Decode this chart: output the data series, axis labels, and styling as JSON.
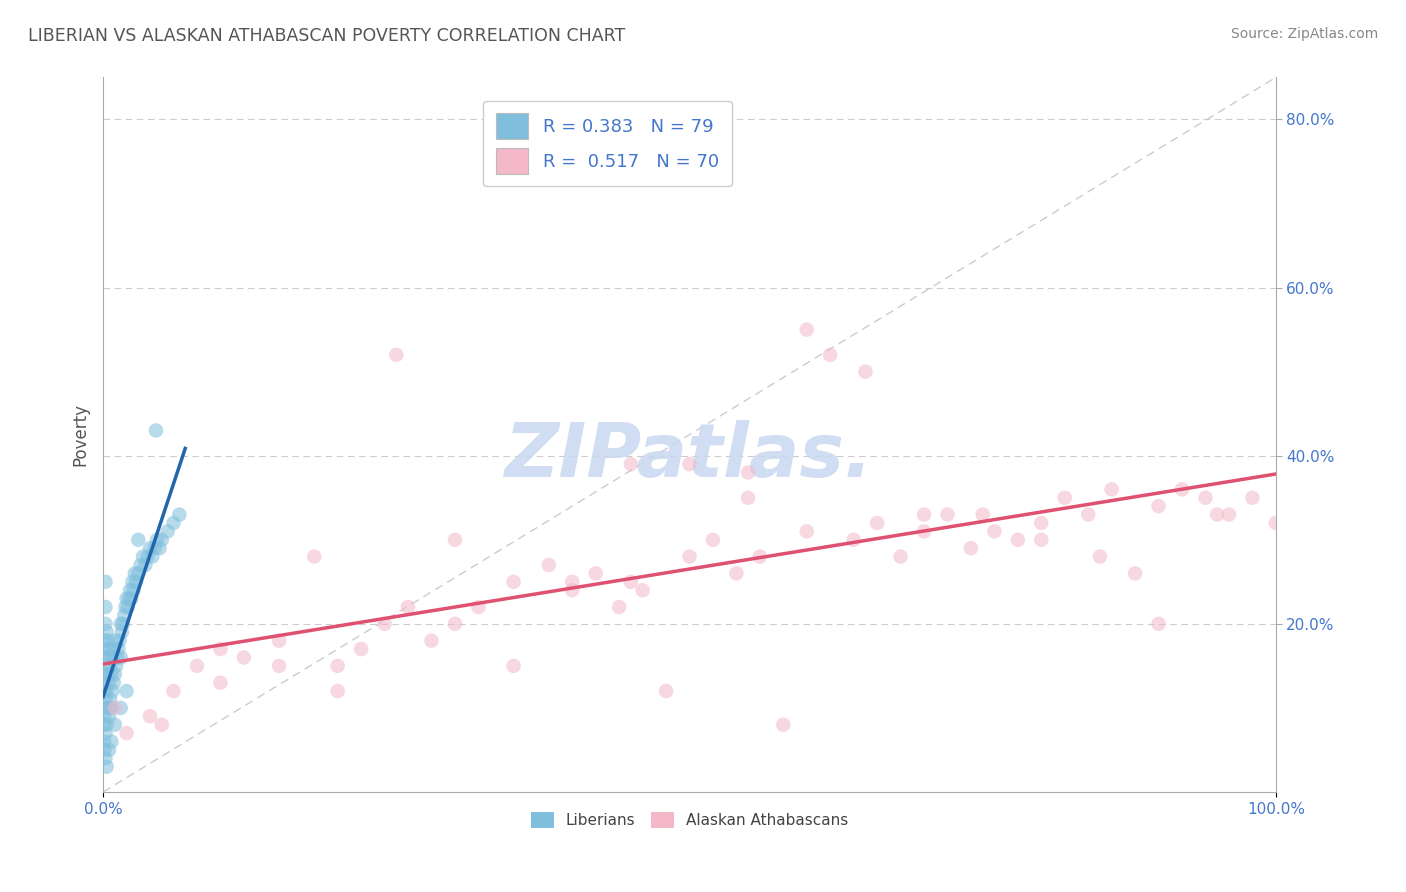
{
  "title": "LIBERIAN VS ALASKAN ATHABASCAN POVERTY CORRELATION CHART",
  "source": "Source: ZipAtlas.com",
  "ylabel": "Poverty",
  "xlim": [
    0.0,
    1.0
  ],
  "ylim": [
    0.0,
    0.85
  ],
  "right_yticks": [
    0.2,
    0.4,
    0.6,
    0.8
  ],
  "right_yticklabels": [
    "20.0%",
    "40.0%",
    "60.0%",
    "80.0%"
  ],
  "watermark_text": "ZIPatlas.",
  "liberian_color": "#7fbfdd",
  "athabascan_color": "#f4b8c8",
  "liberian_line_color": "#2166ac",
  "athabascan_line_color": "#e05070",
  "diagonal_color": "#cccccc",
  "background_color": "#ffffff",
  "title_color": "#555555",
  "tick_color": "#4477cc",
  "watermark_color": "#c8d8f0",
  "legend_text_color": "#4477cc",
  "source_color": "#888888",
  "R_lib": 0.383,
  "N_lib": 79,
  "R_ath": 0.517,
  "N_ath": 70,
  "liberian_x": [
    0.001,
    0.001,
    0.001,
    0.001,
    0.001,
    0.001,
    0.001,
    0.001,
    0.001,
    0.001,
    0.002,
    0.002,
    0.002,
    0.002,
    0.002,
    0.002,
    0.002,
    0.003,
    0.003,
    0.003,
    0.003,
    0.004,
    0.004,
    0.004,
    0.005,
    0.005,
    0.005,
    0.006,
    0.006,
    0.007,
    0.007,
    0.008,
    0.008,
    0.009,
    0.009,
    0.01,
    0.01,
    0.011,
    0.012,
    0.013,
    0.014,
    0.015,
    0.015,
    0.016,
    0.017,
    0.018,
    0.019,
    0.02,
    0.021,
    0.022,
    0.023,
    0.024,
    0.025,
    0.026,
    0.027,
    0.028,
    0.03,
    0.032,
    0.034,
    0.036,
    0.038,
    0.04,
    0.042,
    0.044,
    0.046,
    0.048,
    0.05,
    0.055,
    0.06,
    0.065,
    0.002,
    0.003,
    0.005,
    0.007,
    0.01,
    0.015,
    0.02,
    0.03,
    0.045
  ],
  "liberian_y": [
    0.05,
    0.08,
    0.1,
    0.12,
    0.14,
    0.16,
    0.18,
    0.06,
    0.09,
    0.13,
    0.15,
    0.11,
    0.17,
    0.2,
    0.07,
    0.22,
    0.25,
    0.08,
    0.12,
    0.16,
    0.19,
    0.1,
    0.14,
    0.18,
    0.09,
    0.13,
    0.17,
    0.11,
    0.15,
    0.1,
    0.14,
    0.12,
    0.16,
    0.13,
    0.17,
    0.14,
    0.18,
    0.15,
    0.16,
    0.17,
    0.18,
    0.16,
    0.2,
    0.19,
    0.2,
    0.21,
    0.22,
    0.23,
    0.22,
    0.23,
    0.24,
    0.23,
    0.25,
    0.24,
    0.26,
    0.25,
    0.26,
    0.27,
    0.28,
    0.27,
    0.28,
    0.29,
    0.28,
    0.29,
    0.3,
    0.29,
    0.3,
    0.31,
    0.32,
    0.33,
    0.04,
    0.03,
    0.05,
    0.06,
    0.08,
    0.1,
    0.12,
    0.3,
    0.43
  ],
  "athabascan_x": [
    0.01,
    0.02,
    0.04,
    0.06,
    0.08,
    0.1,
    0.12,
    0.15,
    0.18,
    0.2,
    0.22,
    0.24,
    0.26,
    0.28,
    0.3,
    0.32,
    0.35,
    0.38,
    0.4,
    0.42,
    0.44,
    0.46,
    0.48,
    0.5,
    0.52,
    0.54,
    0.56,
    0.58,
    0.6,
    0.62,
    0.64,
    0.66,
    0.68,
    0.7,
    0.72,
    0.74,
    0.76,
    0.78,
    0.8,
    0.82,
    0.84,
    0.86,
    0.88,
    0.9,
    0.92,
    0.94,
    0.96,
    0.98,
    1.0,
    0.05,
    0.15,
    0.25,
    0.35,
    0.45,
    0.55,
    0.65,
    0.75,
    0.85,
    0.95,
    0.5,
    0.3,
    0.7,
    0.2,
    0.6,
    0.4,
    0.8,
    0.1,
    0.9,
    0.55,
    0.45
  ],
  "athabascan_y": [
    0.1,
    0.07,
    0.09,
    0.12,
    0.15,
    0.13,
    0.16,
    0.18,
    0.28,
    0.15,
    0.17,
    0.2,
    0.22,
    0.18,
    0.2,
    0.22,
    0.25,
    0.27,
    0.24,
    0.26,
    0.22,
    0.24,
    0.12,
    0.28,
    0.3,
    0.26,
    0.28,
    0.08,
    0.55,
    0.52,
    0.3,
    0.32,
    0.28,
    0.31,
    0.33,
    0.29,
    0.31,
    0.3,
    0.32,
    0.35,
    0.33,
    0.36,
    0.26,
    0.34,
    0.36,
    0.35,
    0.33,
    0.35,
    0.32,
    0.08,
    0.15,
    0.52,
    0.15,
    0.39,
    0.35,
    0.5,
    0.33,
    0.28,
    0.33,
    0.39,
    0.3,
    0.33,
    0.12,
    0.31,
    0.25,
    0.3,
    0.17,
    0.2,
    0.38,
    0.25
  ]
}
